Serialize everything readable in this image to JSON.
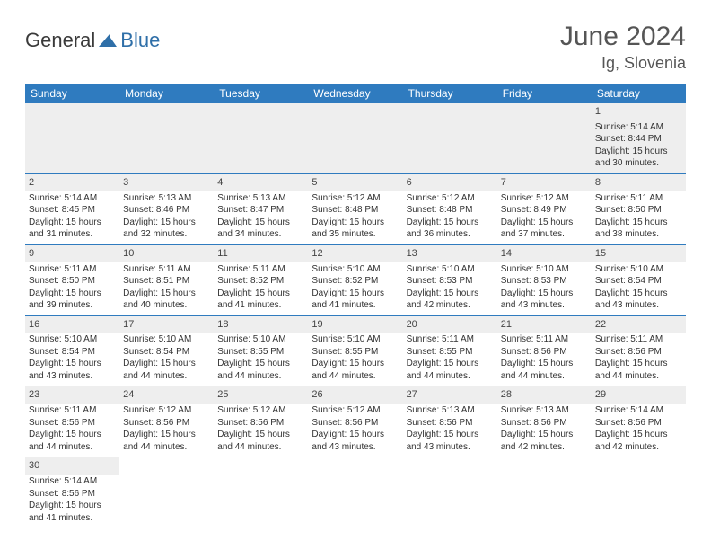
{
  "brand": {
    "part1": "General",
    "part2": "Blue"
  },
  "title": "June 2024",
  "location": "Ig, Slovenia",
  "colors": {
    "header_bg": "#2f7bbf",
    "header_text": "#ffffff",
    "daynum_bg": "#eeeeee",
    "border": "#2f7bbf"
  },
  "fonts": {
    "title_size": 30,
    "location_size": 18,
    "th_size": 12,
    "cell_size": 10
  },
  "weekdays": [
    "Sunday",
    "Monday",
    "Tuesday",
    "Wednesday",
    "Thursday",
    "Friday",
    "Saturday"
  ],
  "weeks": [
    [
      null,
      null,
      null,
      null,
      null,
      null,
      {
        "n": "1",
        "sr": "Sunrise: 5:14 AM",
        "ss": "Sunset: 8:44 PM",
        "d1": "Daylight: 15 hours",
        "d2": "and 30 minutes."
      }
    ],
    [
      {
        "n": "2",
        "sr": "Sunrise: 5:14 AM",
        "ss": "Sunset: 8:45 PM",
        "d1": "Daylight: 15 hours",
        "d2": "and 31 minutes."
      },
      {
        "n": "3",
        "sr": "Sunrise: 5:13 AM",
        "ss": "Sunset: 8:46 PM",
        "d1": "Daylight: 15 hours",
        "d2": "and 32 minutes."
      },
      {
        "n": "4",
        "sr": "Sunrise: 5:13 AM",
        "ss": "Sunset: 8:47 PM",
        "d1": "Daylight: 15 hours",
        "d2": "and 34 minutes."
      },
      {
        "n": "5",
        "sr": "Sunrise: 5:12 AM",
        "ss": "Sunset: 8:48 PM",
        "d1": "Daylight: 15 hours",
        "d2": "and 35 minutes."
      },
      {
        "n": "6",
        "sr": "Sunrise: 5:12 AM",
        "ss": "Sunset: 8:48 PM",
        "d1": "Daylight: 15 hours",
        "d2": "and 36 minutes."
      },
      {
        "n": "7",
        "sr": "Sunrise: 5:12 AM",
        "ss": "Sunset: 8:49 PM",
        "d1": "Daylight: 15 hours",
        "d2": "and 37 minutes."
      },
      {
        "n": "8",
        "sr": "Sunrise: 5:11 AM",
        "ss": "Sunset: 8:50 PM",
        "d1": "Daylight: 15 hours",
        "d2": "and 38 minutes."
      }
    ],
    [
      {
        "n": "9",
        "sr": "Sunrise: 5:11 AM",
        "ss": "Sunset: 8:50 PM",
        "d1": "Daylight: 15 hours",
        "d2": "and 39 minutes."
      },
      {
        "n": "10",
        "sr": "Sunrise: 5:11 AM",
        "ss": "Sunset: 8:51 PM",
        "d1": "Daylight: 15 hours",
        "d2": "and 40 minutes."
      },
      {
        "n": "11",
        "sr": "Sunrise: 5:11 AM",
        "ss": "Sunset: 8:52 PM",
        "d1": "Daylight: 15 hours",
        "d2": "and 41 minutes."
      },
      {
        "n": "12",
        "sr": "Sunrise: 5:10 AM",
        "ss": "Sunset: 8:52 PM",
        "d1": "Daylight: 15 hours",
        "d2": "and 41 minutes."
      },
      {
        "n": "13",
        "sr": "Sunrise: 5:10 AM",
        "ss": "Sunset: 8:53 PM",
        "d1": "Daylight: 15 hours",
        "d2": "and 42 minutes."
      },
      {
        "n": "14",
        "sr": "Sunrise: 5:10 AM",
        "ss": "Sunset: 8:53 PM",
        "d1": "Daylight: 15 hours",
        "d2": "and 43 minutes."
      },
      {
        "n": "15",
        "sr": "Sunrise: 5:10 AM",
        "ss": "Sunset: 8:54 PM",
        "d1": "Daylight: 15 hours",
        "d2": "and 43 minutes."
      }
    ],
    [
      {
        "n": "16",
        "sr": "Sunrise: 5:10 AM",
        "ss": "Sunset: 8:54 PM",
        "d1": "Daylight: 15 hours",
        "d2": "and 43 minutes."
      },
      {
        "n": "17",
        "sr": "Sunrise: 5:10 AM",
        "ss": "Sunset: 8:54 PM",
        "d1": "Daylight: 15 hours",
        "d2": "and 44 minutes."
      },
      {
        "n": "18",
        "sr": "Sunrise: 5:10 AM",
        "ss": "Sunset: 8:55 PM",
        "d1": "Daylight: 15 hours",
        "d2": "and 44 minutes."
      },
      {
        "n": "19",
        "sr": "Sunrise: 5:10 AM",
        "ss": "Sunset: 8:55 PM",
        "d1": "Daylight: 15 hours",
        "d2": "and 44 minutes."
      },
      {
        "n": "20",
        "sr": "Sunrise: 5:11 AM",
        "ss": "Sunset: 8:55 PM",
        "d1": "Daylight: 15 hours",
        "d2": "and 44 minutes."
      },
      {
        "n": "21",
        "sr": "Sunrise: 5:11 AM",
        "ss": "Sunset: 8:56 PM",
        "d1": "Daylight: 15 hours",
        "d2": "and 44 minutes."
      },
      {
        "n": "22",
        "sr": "Sunrise: 5:11 AM",
        "ss": "Sunset: 8:56 PM",
        "d1": "Daylight: 15 hours",
        "d2": "and 44 minutes."
      }
    ],
    [
      {
        "n": "23",
        "sr": "Sunrise: 5:11 AM",
        "ss": "Sunset: 8:56 PM",
        "d1": "Daylight: 15 hours",
        "d2": "and 44 minutes."
      },
      {
        "n": "24",
        "sr": "Sunrise: 5:12 AM",
        "ss": "Sunset: 8:56 PM",
        "d1": "Daylight: 15 hours",
        "d2": "and 44 minutes."
      },
      {
        "n": "25",
        "sr": "Sunrise: 5:12 AM",
        "ss": "Sunset: 8:56 PM",
        "d1": "Daylight: 15 hours",
        "d2": "and 44 minutes."
      },
      {
        "n": "26",
        "sr": "Sunrise: 5:12 AM",
        "ss": "Sunset: 8:56 PM",
        "d1": "Daylight: 15 hours",
        "d2": "and 43 minutes."
      },
      {
        "n": "27",
        "sr": "Sunrise: 5:13 AM",
        "ss": "Sunset: 8:56 PM",
        "d1": "Daylight: 15 hours",
        "d2": "and 43 minutes."
      },
      {
        "n": "28",
        "sr": "Sunrise: 5:13 AM",
        "ss": "Sunset: 8:56 PM",
        "d1": "Daylight: 15 hours",
        "d2": "and 42 minutes."
      },
      {
        "n": "29",
        "sr": "Sunrise: 5:14 AM",
        "ss": "Sunset: 8:56 PM",
        "d1": "Daylight: 15 hours",
        "d2": "and 42 minutes."
      }
    ],
    [
      {
        "n": "30",
        "sr": "Sunrise: 5:14 AM",
        "ss": "Sunset: 8:56 PM",
        "d1": "Daylight: 15 hours",
        "d2": "and 41 minutes."
      },
      null,
      null,
      null,
      null,
      null,
      null
    ]
  ]
}
